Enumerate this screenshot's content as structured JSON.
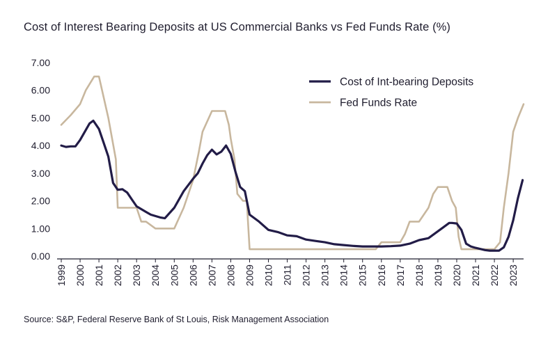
{
  "title": "Cost of Interest Bearing Deposits at US Commercial Banks vs Fed Funds Rate (%)",
  "source": "Source: S&P, Federal Reserve Bank of St Louis, Risk Management Association",
  "colors": {
    "deposits": "#221c47",
    "fed": "#c8b79e",
    "axis": "#1f1d2e",
    "text": "#1f1d2e"
  },
  "chart_data": {
    "type": "line",
    "xlim": [
      1999,
      2023.55
    ],
    "ylim": [
      0,
      7
    ],
    "y_ticks": [
      "0.00",
      "1.00",
      "2.00",
      "3.00",
      "4.00",
      "5.00",
      "6.00",
      "7.00"
    ],
    "x_ticks": [
      "1999",
      "2000",
      "2001",
      "2002",
      "2003",
      "2004",
      "2005",
      "2006",
      "2007",
      "2008",
      "2009",
      "2010",
      "2011",
      "2012",
      "2013",
      "2014",
      "2015",
      "2016",
      "2017",
      "2018",
      "2019",
      "2020",
      "2021",
      "2022",
      "2023"
    ],
    "grid": false,
    "legend_position": "top-right",
    "series": [
      {
        "name": "Cost of Int-bearing Deposits",
        "color": "#221c47",
        "x": [
          1999.0,
          1999.25,
          1999.5,
          1999.75,
          2000.0,
          2000.25,
          2000.5,
          2000.7,
          2001.0,
          2001.25,
          2001.5,
          2001.75,
          2002.0,
          2002.25,
          2002.5,
          2002.75,
          2003.0,
          2003.5,
          2003.75,
          2004.0,
          2004.25,
          2004.5,
          2005.0,
          2005.5,
          2006.0,
          2006.25,
          2006.5,
          2006.75,
          2007.0,
          2007.25,
          2007.5,
          2007.75,
          2008.0,
          2008.25,
          2008.5,
          2008.75,
          2009.0,
          2009.5,
          2010.0,
          2010.5,
          2011.0,
          2011.5,
          2012.0,
          2012.5,
          2013.0,
          2013.5,
          2014.0,
          2014.5,
          2015.0,
          2015.5,
          2016.0,
          2016.5,
          2017.0,
          2017.5,
          2018.0,
          2018.5,
          2019.0,
          2019.3,
          2019.6,
          2019.75,
          2020.0,
          2020.25,
          2020.5,
          2020.75,
          2021.0,
          2021.5,
          2021.75,
          2022.0,
          2022.25,
          2022.5,
          2022.75,
          2023.0,
          2023.25,
          2023.5
        ],
        "y": [
          4.0,
          3.95,
          3.97,
          3.97,
          4.2,
          4.5,
          4.8,
          4.9,
          4.6,
          4.1,
          3.6,
          2.65,
          2.4,
          2.42,
          2.3,
          2.05,
          1.8,
          1.6,
          1.5,
          1.45,
          1.4,
          1.37,
          1.75,
          2.35,
          2.8,
          3.0,
          3.35,
          3.65,
          3.85,
          3.68,
          3.78,
          4.0,
          3.7,
          3.05,
          2.5,
          2.35,
          1.5,
          1.25,
          0.95,
          0.87,
          0.75,
          0.72,
          0.6,
          0.55,
          0.5,
          0.43,
          0.4,
          0.37,
          0.35,
          0.35,
          0.35,
          0.36,
          0.38,
          0.45,
          0.58,
          0.65,
          0.9,
          1.05,
          1.2,
          1.2,
          1.18,
          0.95,
          0.45,
          0.35,
          0.3,
          0.22,
          0.2,
          0.2,
          0.2,
          0.32,
          0.7,
          1.3,
          2.1,
          2.75
        ]
      },
      {
        "name": "Fed Funds Rate",
        "color": "#c8b79e",
        "x": [
          1999.0,
          1999.5,
          2000.0,
          2000.3,
          2000.75,
          2001.0,
          2001.5,
          2001.9,
          2002.0,
          2002.5,
          2002.9,
          2003.0,
          2003.25,
          2003.5,
          2004.0,
          2004.5,
          2005.0,
          2005.5,
          2006.0,
          2006.3,
          2006.5,
          2007.0,
          2007.25,
          2007.55,
          2007.7,
          2007.9,
          2008.0,
          2008.2,
          2008.35,
          2008.65,
          2008.85,
          2009.0,
          2010.0,
          2011.0,
          2012.0,
          2013.0,
          2014.0,
          2015.0,
          2015.7,
          2016.0,
          2016.5,
          2017.0,
          2017.25,
          2017.5,
          2018.0,
          2018.5,
          2018.75,
          2019.0,
          2019.25,
          2019.5,
          2019.75,
          2019.95,
          2020.1,
          2020.25,
          2020.5,
          2021.0,
          2021.5,
          2021.8,
          2022.0,
          2022.3,
          2022.5,
          2022.75,
          2023.0,
          2023.25,
          2023.55
        ],
        "y": [
          4.75,
          5.1,
          5.5,
          6.0,
          6.5,
          6.5,
          5.0,
          3.5,
          1.75,
          1.75,
          1.75,
          1.75,
          1.25,
          1.25,
          1.0,
          1.0,
          1.0,
          1.75,
          2.75,
          3.75,
          4.5,
          5.25,
          5.25,
          5.25,
          5.25,
          4.75,
          4.25,
          3.5,
          2.25,
          2.0,
          2.0,
          0.25,
          0.25,
          0.25,
          0.25,
          0.25,
          0.25,
          0.25,
          0.25,
          0.5,
          0.5,
          0.5,
          0.8,
          1.25,
          1.25,
          1.75,
          2.25,
          2.5,
          2.5,
          2.5,
          2.0,
          1.75,
          0.7,
          0.25,
          0.25,
          0.25,
          0.25,
          0.25,
          0.25,
          0.5,
          1.75,
          3.0,
          4.5,
          5.0,
          5.5
        ]
      }
    ]
  }
}
